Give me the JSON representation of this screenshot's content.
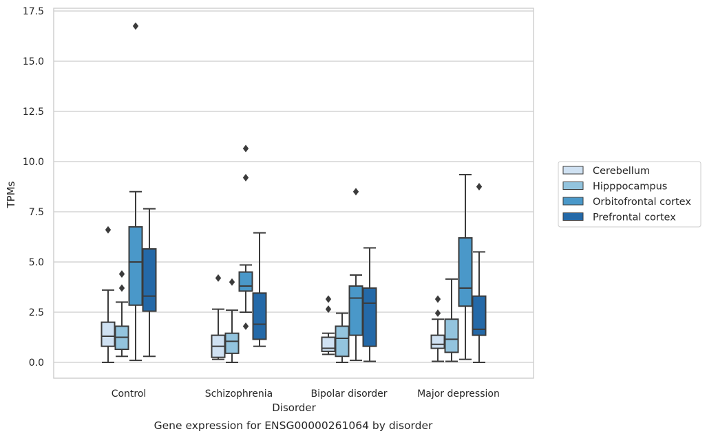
{
  "chart_data": {
    "type": "box",
    "caption": "Gene expression for ENSG00000261064 by disorder",
    "xlabel": "Disorder",
    "ylabel": "TPMs",
    "ylim": [
      -0.8,
      17.6
    ],
    "yticks": [
      0.0,
      2.5,
      5.0,
      7.5,
      10.0,
      12.5,
      15.0,
      17.5
    ],
    "ytick_labels": [
      "0.0",
      "2.5",
      "5.0",
      "7.5",
      "10.0",
      "12.5",
      "15.0",
      "17.5"
    ],
    "grid": "horizontal",
    "legend_position": "right",
    "categories": [
      "Control",
      "Schizophrenia",
      "Bipolar disorder",
      "Major depression"
    ],
    "series": [
      {
        "name": "Cerebellum",
        "color": "#cfe1f2",
        "boxes": [
          {
            "whislo": 0.0,
            "q1": 0.8,
            "med": 1.3,
            "q3": 2.0,
            "whishi": 3.6,
            "fliers": [
              6.6
            ]
          },
          {
            "whislo": 0.15,
            "q1": 0.25,
            "med": 0.8,
            "q3": 1.35,
            "whishi": 2.65,
            "fliers": [
              4.2
            ]
          },
          {
            "whislo": 0.4,
            "q1": 0.55,
            "med": 0.7,
            "q3": 1.25,
            "whishi": 1.45,
            "fliers": [
              2.65,
              3.15
            ]
          },
          {
            "whislo": 0.05,
            "q1": 0.7,
            "med": 0.9,
            "q3": 1.35,
            "whishi": 2.15,
            "fliers": [
              2.45,
              3.15
            ]
          }
        ]
      },
      {
        "name": "Hipppocampus",
        "color": "#93c4de",
        "boxes": [
          {
            "whislo": 0.3,
            "q1": 0.65,
            "med": 1.25,
            "q3": 1.8,
            "whishi": 3.0,
            "fliers": [
              3.7,
              4.4
            ]
          },
          {
            "whislo": 0.0,
            "q1": 0.45,
            "med": 1.05,
            "q3": 1.45,
            "whishi": 2.6,
            "fliers": [
              4.0
            ]
          },
          {
            "whislo": 0.0,
            "q1": 0.3,
            "med": 1.2,
            "q3": 1.8,
            "whishi": 2.45,
            "fliers": []
          },
          {
            "whislo": 0.05,
            "q1": 0.5,
            "med": 1.15,
            "q3": 2.15,
            "whishi": 4.15,
            "fliers": []
          }
        ]
      },
      {
        "name": "Orbitofrontal cortex",
        "color": "#4a98c9",
        "boxes": [
          {
            "whislo": 0.1,
            "q1": 2.85,
            "med": 5.0,
            "q3": 6.75,
            "whishi": 8.5,
            "fliers": [
              16.75
            ]
          },
          {
            "whislo": 2.5,
            "q1": 3.55,
            "med": 3.8,
            "q3": 4.5,
            "whishi": 4.85,
            "fliers": [
              1.8,
              9.2,
              10.65
            ]
          },
          {
            "whislo": 0.1,
            "q1": 1.35,
            "med": 3.2,
            "q3": 3.8,
            "whishi": 4.35,
            "fliers": [
              8.5
            ]
          },
          {
            "whislo": 0.15,
            "q1": 2.8,
            "med": 3.7,
            "q3": 6.2,
            "whishi": 9.35,
            "fliers": []
          }
        ]
      },
      {
        "name": "Prefrontal cortex",
        "color": "#2469a8",
        "boxes": [
          {
            "whislo": 0.3,
            "q1": 2.55,
            "med": 3.3,
            "q3": 5.65,
            "whishi": 7.65,
            "fliers": []
          },
          {
            "whislo": 0.8,
            "q1": 1.15,
            "med": 1.9,
            "q3": 3.45,
            "whishi": 6.45,
            "fliers": []
          },
          {
            "whislo": 0.05,
            "q1": 0.8,
            "med": 2.95,
            "q3": 3.7,
            "whishi": 5.7,
            "fliers": []
          },
          {
            "whislo": 0.0,
            "q1": 1.35,
            "med": 1.65,
            "q3": 3.3,
            "whishi": 5.5,
            "fliers": [
              8.75
            ]
          }
        ]
      }
    ]
  }
}
